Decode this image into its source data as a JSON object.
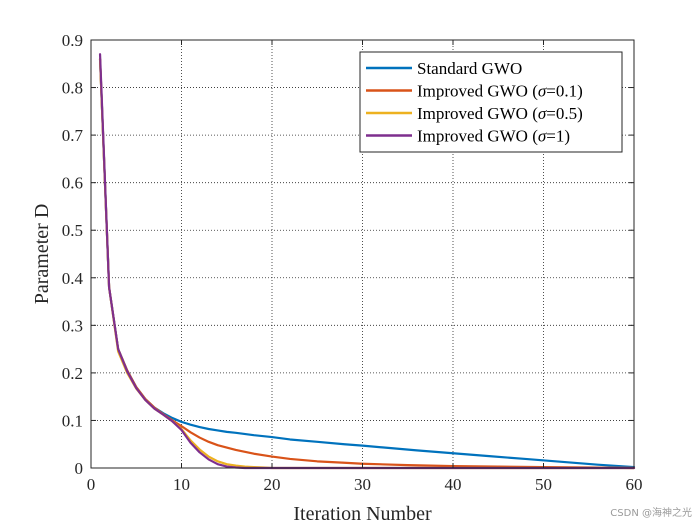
{
  "chart_data": {
    "type": "line",
    "xlabel": "Iteration Number",
    "ylabel": "Parameter D",
    "xlim": [
      0,
      60
    ],
    "ylim": [
      0,
      0.9
    ],
    "xticks": [
      0,
      10,
      20,
      30,
      40,
      50,
      60
    ],
    "yticks": [
      0,
      0.1,
      0.2,
      0.3,
      0.4,
      0.5,
      0.6,
      0.7,
      0.8,
      0.9
    ],
    "xtick_labels": [
      "0",
      "10",
      "20",
      "30",
      "40",
      "50",
      "60"
    ],
    "ytick_labels": [
      "0",
      "0.1",
      "0.2",
      "0.3",
      "0.4",
      "0.5",
      "0.6",
      "0.7",
      "0.8",
      "0.9"
    ],
    "grid": true,
    "legend_position": "top-right",
    "series": [
      {
        "name": "Standard GWO",
        "color": "#0072BD",
        "x": [
          1,
          2,
          3,
          4,
          5,
          6,
          7,
          8,
          9,
          10,
          11,
          12,
          13,
          14,
          15,
          16,
          18,
          20,
          22,
          25,
          28,
          30,
          33,
          36,
          40,
          44,
          48,
          52,
          56,
          60
        ],
        "y": [
          0.86,
          0.38,
          0.25,
          0.205,
          0.17,
          0.145,
          0.127,
          0.115,
          0.105,
          0.097,
          0.091,
          0.086,
          0.082,
          0.079,
          0.076,
          0.074,
          0.069,
          0.065,
          0.06,
          0.055,
          0.05,
          0.047,
          0.042,
          0.037,
          0.031,
          0.025,
          0.019,
          0.013,
          0.007,
          0.002
        ]
      },
      {
        "name": "Improved GWO (σ=0.1)",
        "name_parts": [
          "Improved GWO (",
          "σ",
          "=0.1)"
        ],
        "color": "#D95319",
        "x": [
          1,
          2,
          3,
          4,
          5,
          6,
          7,
          8,
          9,
          10,
          11,
          12,
          13,
          14,
          15,
          16,
          18,
          20,
          22,
          25,
          28,
          30,
          35,
          40,
          45,
          50,
          55,
          60
        ],
        "y": [
          0.86,
          0.38,
          0.25,
          0.205,
          0.17,
          0.145,
          0.127,
          0.113,
          0.1,
          0.088,
          0.075,
          0.064,
          0.055,
          0.048,
          0.043,
          0.038,
          0.03,
          0.024,
          0.019,
          0.014,
          0.011,
          0.009,
          0.006,
          0.004,
          0.003,
          0.002,
          0.001,
          0.0
        ]
      },
      {
        "name": "Improved GWO (σ=0.5)",
        "name_parts": [
          "Improved GWO (",
          "σ",
          "=0.5)"
        ],
        "color": "#EDB120",
        "x": [
          1,
          2,
          3,
          4,
          5,
          6,
          7,
          8,
          9,
          10,
          11,
          12,
          13,
          14,
          15,
          16,
          17,
          18,
          19,
          20,
          25,
          30,
          40,
          50,
          60
        ],
        "y": [
          0.86,
          0.38,
          0.245,
          0.2,
          0.167,
          0.143,
          0.125,
          0.112,
          0.098,
          0.082,
          0.058,
          0.039,
          0.024,
          0.014,
          0.008,
          0.005,
          0.003,
          0.002,
          0.001,
          0.0,
          0.0,
          0.0,
          0.0,
          0.0,
          0.0
        ]
      },
      {
        "name": "Improved GWO (σ=1)",
        "name_parts": [
          "Improved GWO (",
          "σ",
          "=1)"
        ],
        "color": "#7E2F8E",
        "x": [
          1,
          2,
          3,
          4,
          5,
          6,
          7,
          8,
          9,
          10,
          11,
          12,
          13,
          14,
          15,
          16,
          17,
          18,
          20,
          25,
          30,
          40,
          50,
          60
        ],
        "y": [
          0.87,
          0.38,
          0.25,
          0.203,
          0.168,
          0.143,
          0.125,
          0.112,
          0.098,
          0.08,
          0.053,
          0.033,
          0.018,
          0.008,
          0.003,
          0.001,
          0.0,
          0.0,
          0.0,
          0.0,
          0.0,
          0.0,
          0.0,
          0.0
        ]
      }
    ]
  },
  "watermark": "CSDN @海神之光"
}
